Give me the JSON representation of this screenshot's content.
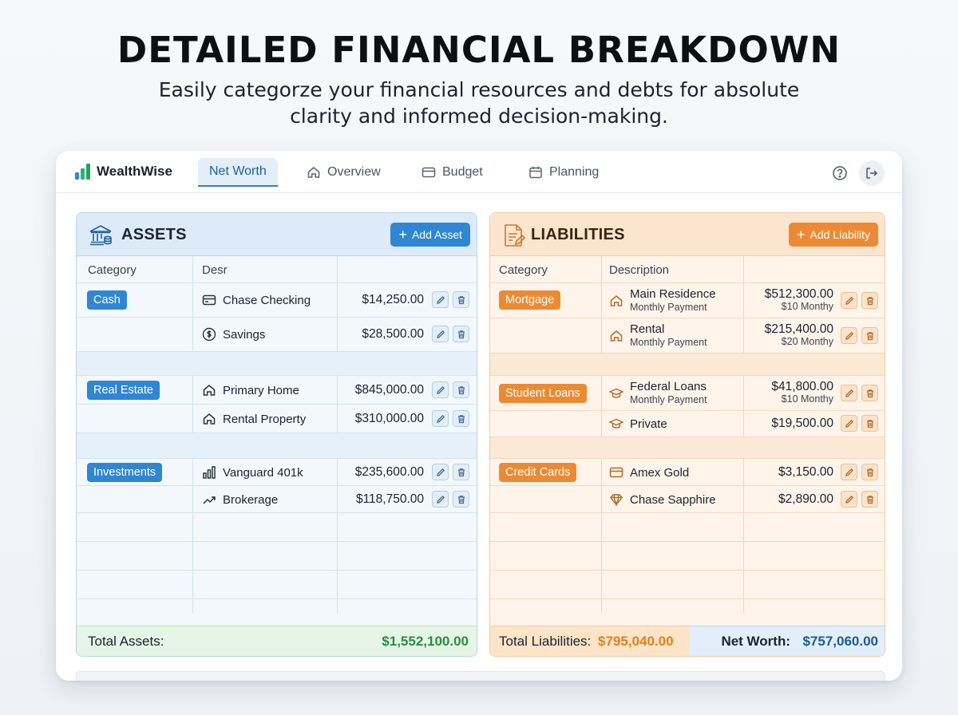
{
  "hero": {
    "title": "DETAILED FINANCIAL BREAKDOWN",
    "subtitle": "Easily categorze your financial resources and debts for absolute clarity and informed decision-making."
  },
  "app": {
    "name": "WealthWise",
    "tabs": [
      {
        "label": "Net Worth",
        "icon": "none",
        "active": true
      },
      {
        "label": "Overview",
        "icon": "home-icon",
        "active": false
      },
      {
        "label": "Budget",
        "icon": "card-icon",
        "active": false
      },
      {
        "label": "Planning",
        "icon": "calendar-icon",
        "active": false
      }
    ],
    "actions": [
      "help-icon",
      "logout-icon"
    ]
  },
  "assets": {
    "title": "ASSETS",
    "add_label": "Add Asset",
    "columns": {
      "category": "Category",
      "description": "Desr"
    },
    "groups": [
      {
        "category": "Cash",
        "items": [
          {
            "icon": "card-icon",
            "description": "Chase Checking",
            "amount": "$14,250.00"
          },
          {
            "icon": "dollar-circle-icon",
            "description": "Savings",
            "amount": "$28,500.00"
          }
        ]
      },
      {
        "category": "Real Estate",
        "items": [
          {
            "icon": "home-icon",
            "description": "Primary Home",
            "amount": "$845,000.00"
          },
          {
            "icon": "home-icon",
            "description": "Rental Property",
            "amount": "$310,000.00"
          }
        ]
      },
      {
        "category": "Investments",
        "items": [
          {
            "icon": "bar-chart-icon",
            "description": "Vanguard 401k",
            "amount": "$235,600.00"
          },
          {
            "icon": "trend-up-icon",
            "description": "Brokerage",
            "amount": "$118,750.00"
          }
        ]
      }
    ],
    "total_label": "Total Assets:",
    "total_value": "$1,552,100.00"
  },
  "liabilities": {
    "title": "LIABILITIES",
    "add_label": "Add Liability",
    "columns": {
      "category": "Category",
      "description": "Description"
    },
    "groups": [
      {
        "category": "Mortgage",
        "items": [
          {
            "icon": "home-icon",
            "description": "Main Residence",
            "sub": "Monthly Payment",
            "amount": "$512,300.00",
            "amount_sub": "$10 Monthy"
          },
          {
            "icon": "home-icon",
            "description": "Rental",
            "sub": "Monthly Payment",
            "amount": "$215,400.00",
            "amount_sub": "$20 Monthy"
          }
        ]
      },
      {
        "category": "Student Loans",
        "items": [
          {
            "icon": "graduation-cap-icon",
            "description": "Federal Loans",
            "sub": "Monthly Payment",
            "amount": "$41,800.00",
            "amount_sub": "$10 Monthy"
          },
          {
            "icon": "graduation-cap-icon",
            "description": "Private",
            "amount": "$19,500.00"
          }
        ]
      },
      {
        "category": "Credit Cards",
        "items": [
          {
            "icon": "card-icon",
            "description": "Amex Gold",
            "amount": "$3,150.00"
          },
          {
            "icon": "diamond-icon",
            "description": "Chase Sapphire",
            "amount": "$2,890.00"
          }
        ]
      }
    ],
    "total_label": "Total Liabilities:",
    "total_value": "$795,040.00",
    "net_worth_label": "Net Worth:",
    "net_worth_value": "$757,060.00"
  },
  "colors": {
    "asset_accent": "#2f86d3",
    "liability_accent": "#ec8a34",
    "positive": "#2e8b3e",
    "net_worth": "#1f5a92"
  }
}
